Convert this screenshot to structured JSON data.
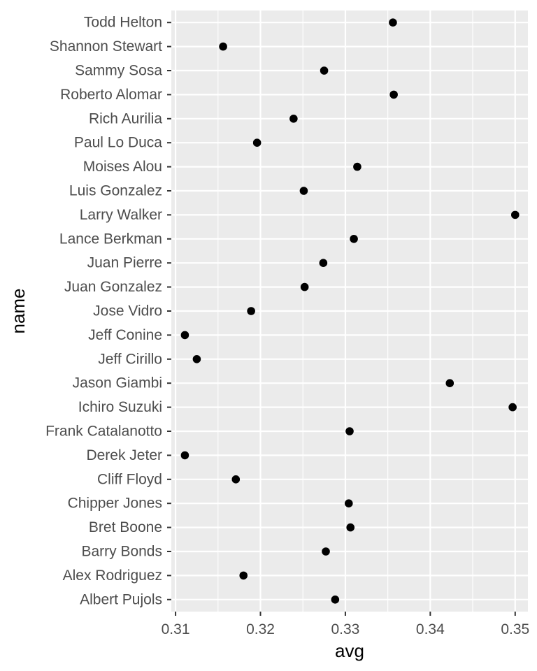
{
  "chart_data": {
    "type": "scatter",
    "title": "",
    "xlabel": "avg",
    "ylabel": "name",
    "xlim": [
      0.3095,
      0.3515
    ],
    "x_ticks": [
      {
        "value": 0.31,
        "label": "0.31"
      },
      {
        "value": 0.32,
        "label": "0.32"
      },
      {
        "value": 0.33,
        "label": "0.33"
      },
      {
        "value": 0.34,
        "label": "0.34"
      },
      {
        "value": 0.35,
        "label": "0.35"
      }
    ],
    "grid": true,
    "background": "#ebebeb",
    "point_color": "#000000",
    "categories": [
      "Todd Helton",
      "Shannon Stewart",
      "Sammy Sosa",
      "Roberto Alomar",
      "Rich Aurilia",
      "Paul Lo Duca",
      "Moises Alou",
      "Luis Gonzalez",
      "Larry Walker",
      "Lance Berkman",
      "Juan Pierre",
      "Juan Gonzalez",
      "Jose Vidro",
      "Jeff Conine",
      "Jeff Cirillo",
      "Jason Giambi",
      "Ichiro Suzuki",
      "Frank Catalanotto",
      "Derek Jeter",
      "Cliff Floyd",
      "Chipper Jones",
      "Bret Boone",
      "Barry Bonds",
      "Alex Rodriguez",
      "Albert Pujols"
    ],
    "values": [
      0.3356,
      0.3156,
      0.3275,
      0.3357,
      0.3239,
      0.3196,
      0.3314,
      0.3251,
      0.35,
      0.331,
      0.3274,
      0.3252,
      0.3189,
      0.3111,
      0.3125,
      0.3423,
      0.3497,
      0.3305,
      0.3111,
      0.3171,
      0.3304,
      0.3306,
      0.3277,
      0.318,
      0.3288
    ]
  }
}
